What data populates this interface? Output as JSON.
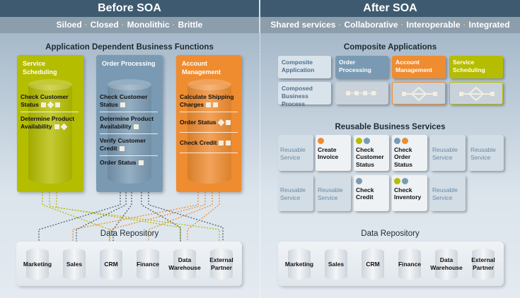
{
  "colors": {
    "green": "#b5bd00",
    "blue": "#7a9ab3",
    "orange": "#ef8c30",
    "header": "#3d5a70"
  },
  "before": {
    "title": "Before SOA",
    "tags": [
      "Siloed",
      "Closed",
      "Monolithic",
      "Brittle"
    ],
    "section_title": "Application Dependent Business Functions",
    "columns": [
      {
        "title": "Service Scheduling",
        "items": [
          "Check Customer Status",
          "Determine Product Availability"
        ]
      },
      {
        "title": "Order Processing",
        "items": [
          "Check Customer Status",
          "Determine Product Availability",
          "Verify Customer Credit",
          "Order Status"
        ]
      },
      {
        "title": "Account Management",
        "items": [
          "Calculate Shipping Charges",
          "Order Status",
          "Check Credit"
        ]
      }
    ],
    "repo_title": "Data Repository",
    "repos": [
      "Marketing",
      "Sales",
      "CRM",
      "Finance",
      "Data Warehouse",
      "External Partner"
    ]
  },
  "after": {
    "title": "After SOA",
    "tags": [
      "Shared services",
      "Collaborative",
      "Interoperable",
      "Integrated"
    ],
    "composite_title": "Composite Applications",
    "row_labels": [
      "Composite Application",
      "Composed Business Process"
    ],
    "apps": [
      "Order Processing",
      "Account Management",
      "Service Scheduling"
    ],
    "services_title": "Reusable Business Services",
    "services": [
      "Reusable Service",
      "Create Invoice",
      "Check Customer Status",
      "Check Order Status",
      "Reusable Service",
      "Reusable Service",
      "Reusable Service",
      "Reusable Service",
      "Check Credit",
      "Check Inventory",
      "Reusable Service"
    ],
    "repo_title": "Data Repository",
    "repos": [
      "Marketing",
      "Sales",
      "CRM",
      "Finance",
      "Data Warehouse",
      "External Partner"
    ]
  }
}
